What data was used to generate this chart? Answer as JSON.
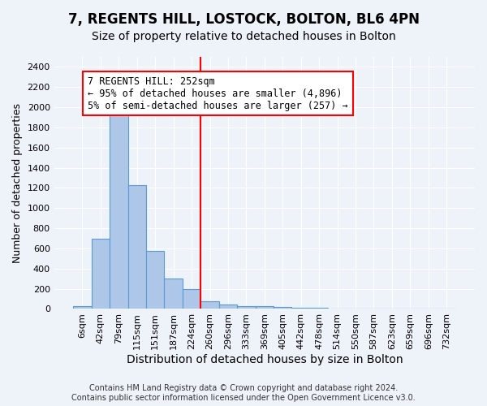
{
  "title1": "7, REGENTS HILL, LOSTOCK, BOLTON, BL6 4PN",
  "title2": "Size of property relative to detached houses in Bolton",
  "xlabel": "Distribution of detached houses by size in Bolton",
  "ylabel": "Number of detached properties",
  "bin_labels": [
    "6sqm",
    "42sqm",
    "79sqm",
    "115sqm",
    "151sqm",
    "187sqm",
    "224sqm",
    "260sqm",
    "296sqm",
    "333sqm",
    "369sqm",
    "405sqm",
    "442sqm",
    "478sqm",
    "514sqm",
    "550sqm",
    "587sqm",
    "623sqm",
    "659sqm",
    "696sqm",
    "732sqm"
  ],
  "bar_heights": [
    25,
    700,
    1950,
    1225,
    575,
    300,
    200,
    75,
    40,
    30,
    25,
    20,
    15,
    10,
    5,
    5,
    5,
    5,
    5,
    5,
    5
  ],
  "bar_color": "#aec6e8",
  "bar_edge_color": "#5b9bd5",
  "vline_color": "red",
  "annotation_text": "7 REGENTS HILL: 252sqm\n← 95% of detached houses are smaller (4,896)\n5% of semi-detached houses are larger (257) →",
  "ylim": [
    0,
    2500
  ],
  "yticks": [
    0,
    200,
    400,
    600,
    800,
    1000,
    1200,
    1400,
    1600,
    1800,
    2000,
    2200,
    2400
  ],
  "footer1": "Contains HM Land Registry data © Crown copyright and database right 2024.",
  "footer2": "Contains public sector information licensed under the Open Government Licence v3.0.",
  "background_color": "#eef2f9",
  "plot_background": "#eef2f9",
  "title1_fontsize": 12,
  "title2_fontsize": 10,
  "xlabel_fontsize": 10,
  "ylabel_fontsize": 9,
  "tick_fontsize": 8,
  "annotation_fontsize": 8.5,
  "footer_fontsize": 7
}
